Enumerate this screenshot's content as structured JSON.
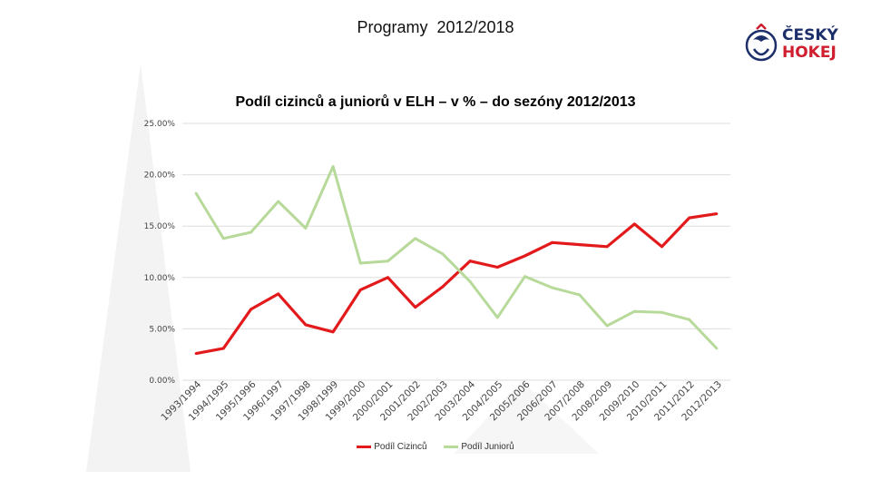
{
  "header": {
    "title": "Programy  2012/2018",
    "logo_line1": "ČESKÝ",
    "logo_line2": "HOKEJ"
  },
  "colors": {
    "series_foreign": "#e31a1c",
    "series_junior": "#b7d99a",
    "grid": "#dddddd",
    "watermark": "#f2f2f2"
  },
  "chart_data": {
    "type": "line",
    "title": "Podíl cizinců a juniorů v ELH – v % – do sezóny 2012/2013",
    "categories": [
      "1993/1994",
      "1994/1995",
      "1995/1996",
      "1996/1997",
      "1997/1998",
      "1998/1999",
      "1999/2000",
      "2000/2001",
      "2001/2002",
      "2002/2003",
      "2003/2004",
      "2004/2005",
      "2005/2006",
      "2006/2007",
      "2007/2008",
      "2008/2009",
      "2009/2010",
      "2010/2011",
      "2011/2012",
      "2012/2013"
    ],
    "y_ticks": [
      "0.00%",
      "5.00%",
      "10.00%",
      "15.00%",
      "20.00%",
      "25.00%"
    ],
    "ylim": [
      0,
      25
    ],
    "grid": true,
    "legend_position": "bottom",
    "series": [
      {
        "name": "Podíl Cizinců",
        "values": [
          2.6,
          3.1,
          6.9,
          8.4,
          5.4,
          4.7,
          8.8,
          10.0,
          7.1,
          9.1,
          11.6,
          11.0,
          12.1,
          13.4,
          13.2,
          13.0,
          15.2,
          13.0,
          15.8,
          16.2
        ]
      },
      {
        "name": "Podíl Juniorů",
        "values": [
          18.2,
          13.8,
          14.4,
          17.4,
          14.8,
          20.8,
          11.4,
          11.6,
          13.8,
          12.3,
          9.6,
          6.1,
          10.1,
          9.0,
          8.3,
          5.3,
          6.7,
          6.6,
          5.9,
          3.1
        ]
      }
    ]
  }
}
